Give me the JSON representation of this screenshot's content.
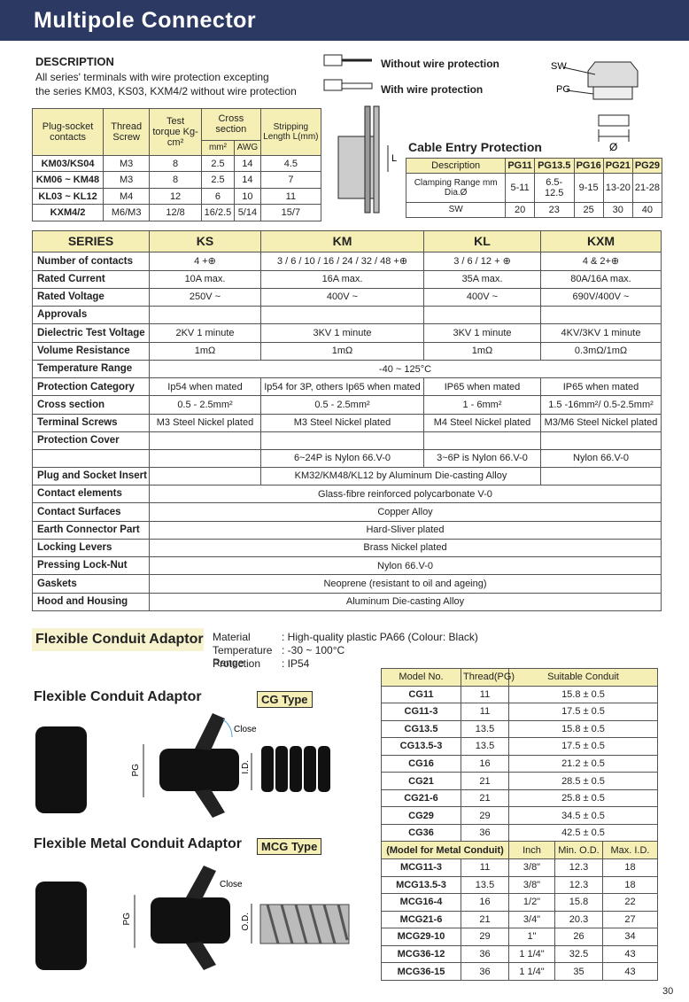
{
  "header": {
    "title": "Multipole Connector"
  },
  "description": {
    "heading": "DESCRIPTION",
    "lines": [
      "All series' terminals with wire protection excepting",
      "the series KM03, KS03, KXM4/2 without wire protection"
    ]
  },
  "wire_legend": [
    "Without wire protection",
    "With wire protection"
  ],
  "diagram_labels": {
    "sw": "SW",
    "pg": "PG",
    "diameter": "Ø",
    "length": "L"
  },
  "plug_table": {
    "header": [
      "Plug-socket contacts",
      "Thread Screw",
      "Test torque Kg-cm²",
      "Cross section",
      "Stripping Length L(mm)"
    ],
    "subheader": [
      "mm²",
      "AWG"
    ],
    "rows": [
      [
        "KM03/KS04",
        "M3",
        "8",
        "2.5",
        "14",
        "4.5"
      ],
      [
        "KM06 ~ KM48",
        "M3",
        "8",
        "2.5",
        "14",
        "7"
      ],
      [
        "KL03 ~ KL12",
        "M4",
        "12",
        "6",
        "10",
        "11"
      ],
      [
        "KXM4/2",
        "M6/M3",
        "12/8",
        "16/2.5",
        "5/14",
        "15/7"
      ]
    ]
  },
  "cable_entry": {
    "title": "Cable Entry Protection",
    "header": [
      "Description",
      "PG11",
      "PG13.5",
      "PG16",
      "PG21",
      "PG29"
    ],
    "rows": [
      [
        "Clamping Range mm Dia.Ø",
        "5-11",
        "6.5-12.5",
        "9-15",
        "13-20",
        "21-28"
      ],
      [
        "SW",
        "20",
        "23",
        "25",
        "30",
        "40"
      ]
    ]
  },
  "series_table": {
    "header": [
      "SERIES",
      "KS",
      "KM",
      "KL",
      "KXM"
    ],
    "rows": [
      {
        "label": "Number of contacts",
        "cells": [
          "4 +⊕",
          "3 / 6 / 10 / 16 / 24 / 32 / 48 +⊕",
          "3 / 6 / 12 + ⊕",
          "4 & 2+⊕"
        ]
      },
      {
        "label": "Rated Current",
        "cells": [
          "10A max.",
          "16A max.",
          "35A max.",
          "80A/16A max."
        ]
      },
      {
        "label": "Rated Voltage",
        "cells": [
          "250V ~",
          "400V ~",
          "400V ~",
          "690V/400V ~"
        ]
      },
      {
        "label": "Approvals",
        "cells": [
          null,
          null,
          null,
          null
        ]
      },
      {
        "label": "Dielectric Test Voltage",
        "cells": [
          "2KV 1 minute",
          "3KV 1 minute",
          "3KV 1 minute",
          "4KV/3KV 1 minute"
        ]
      },
      {
        "label": "Volume Resistance",
        "cells": [
          "1mΩ",
          "1mΩ",
          "1mΩ",
          "0.3mΩ/1mΩ"
        ]
      },
      {
        "label": "Temperature Range",
        "cells": [
          {
            "text": "-40 ~ 125°C",
            "span": 4
          }
        ]
      },
      {
        "label": "Protection Category",
        "cells": [
          "Ip54 when mated",
          "Ip54 for 3P, others Ip65  when mated",
          "IP65  when mated",
          "IP65  when mated"
        ]
      },
      {
        "label": "Cross section",
        "cells": [
          "0.5 - 2.5mm²",
          "0.5 - 2.5mm²",
          "1 - 6mm²",
          "1.5 -16mm²/ 0.5-2.5mm²"
        ]
      },
      {
        "label": "Terminal Screws",
        "cells": [
          "M3 Steel Nickel plated",
          "M3 Steel Nickel plated",
          "M4 Steel Nickel plated",
          "M3/M6  Steel Nickel plated"
        ]
      },
      {
        "label": "Protection Cover",
        "cells": [
          null,
          null,
          null,
          null
        ]
      },
      {
        "label": null,
        "cells": [
          null,
          "6~24P is Nylon 66.V-0",
          "3~6P is Nylon 66.V-0",
          "Nylon 66.V-0"
        ]
      },
      {
        "label": "Plug and Socket Insert",
        "cells": [
          null,
          {
            "text": "KM32/KM48/KL12 by Aluminum Die-casting Alloy",
            "span": 2
          },
          null
        ]
      },
      {
        "label": "Contact elements",
        "cells": [
          {
            "text": "Glass-fibre reinforced polycarbonate V-0",
            "span": 4
          }
        ]
      },
      {
        "label": "Contact Surfaces",
        "cells": [
          {
            "text": "Copper Alloy",
            "span": 4
          }
        ]
      },
      {
        "label": "Earth Connector Part",
        "cells": [
          {
            "text": "Hard-Sliver plated",
            "span": 4
          }
        ]
      },
      {
        "label": "Locking Levers",
        "cells": [
          {
            "text": "Brass Nickel plated",
            "span": 4
          }
        ]
      },
      {
        "label": "Pressing Lock-Nut",
        "cells": [
          {
            "text": "Nylon 66.V-0",
            "span": 4
          }
        ]
      },
      {
        "label": "Gaskets",
        "cells": [
          {
            "text": "Neoprene (resistant to oil and ageing)",
            "span": 4
          }
        ]
      },
      {
        "label": "Hood and Housing",
        "cells": [
          {
            "text": "Aluminum Die-casting Alloy",
            "span": 4
          }
        ]
      }
    ]
  },
  "adaptor": {
    "heading": "Flexible Conduit Adaptor",
    "specs": [
      {
        "label": "Material",
        "value": ":  High-quality plastic PA66 (Colour: Black)"
      },
      {
        "label": "Temperature Range",
        "value": ": -30 ~ 100°C"
      },
      {
        "label": "Protection",
        "value": ":  IP54"
      }
    ],
    "cg_figure": {
      "title": "Flexible Conduit Adaptor",
      "type": "CG Type",
      "close": "Close",
      "pg": "PG",
      "id": "I.D."
    },
    "mcg_figure": {
      "title": "Flexible Metal Conduit Adaptor",
      "type": "MCG Type",
      "close": "Close",
      "pg": "PG",
      "od": "O.D."
    }
  },
  "cg_table": {
    "header": [
      "Model No.",
      "Thread(PG)",
      "Suitable Conduit"
    ],
    "rows": [
      [
        "CG11",
        "11",
        "15.8 ± 0.5"
      ],
      [
        "CG11-3",
        "11",
        "17.5 ± 0.5"
      ],
      [
        "CG13.5",
        "13.5",
        "15.8 ± 0.5"
      ],
      [
        "CG13.5-3",
        "13.5",
        "17.5 ± 0.5"
      ],
      [
        "CG16",
        "16",
        "21.2 ± 0.5"
      ],
      [
        "CG21",
        "21",
        "28.5 ± 0.5"
      ],
      [
        "CG21-6",
        "21",
        "25.8 ± 0.5"
      ],
      [
        "CG29",
        "29",
        "34.5 ± 0.5"
      ],
      [
        "CG36",
        "36",
        "42.5 ± 0.5"
      ]
    ]
  },
  "mcg_table": {
    "header": [
      "(Model for Metal Conduit)",
      "Inch",
      "Min. O.D.",
      "Max. I.D."
    ],
    "rows": [
      [
        "MCG11-3",
        "11",
        "3/8\"",
        "12.3",
        "18"
      ],
      [
        "MCG13.5-3",
        "13.5",
        "3/8\"",
        "12.3",
        "18"
      ],
      [
        "MCG16-4",
        "16",
        "1/2\"",
        "15.8",
        "22"
      ],
      [
        "MCG21-6",
        "21",
        "3/4\"",
        "20.3",
        "27"
      ],
      [
        "MCG29-10",
        "29",
        "1\"",
        "26",
        "34"
      ],
      [
        "MCG36-12",
        "36",
        "1 1/4\"",
        "32.5",
        "43"
      ],
      [
        "MCG36-15",
        "36",
        "1 1/4\"",
        "35",
        "43"
      ]
    ]
  },
  "page_number": "30"
}
